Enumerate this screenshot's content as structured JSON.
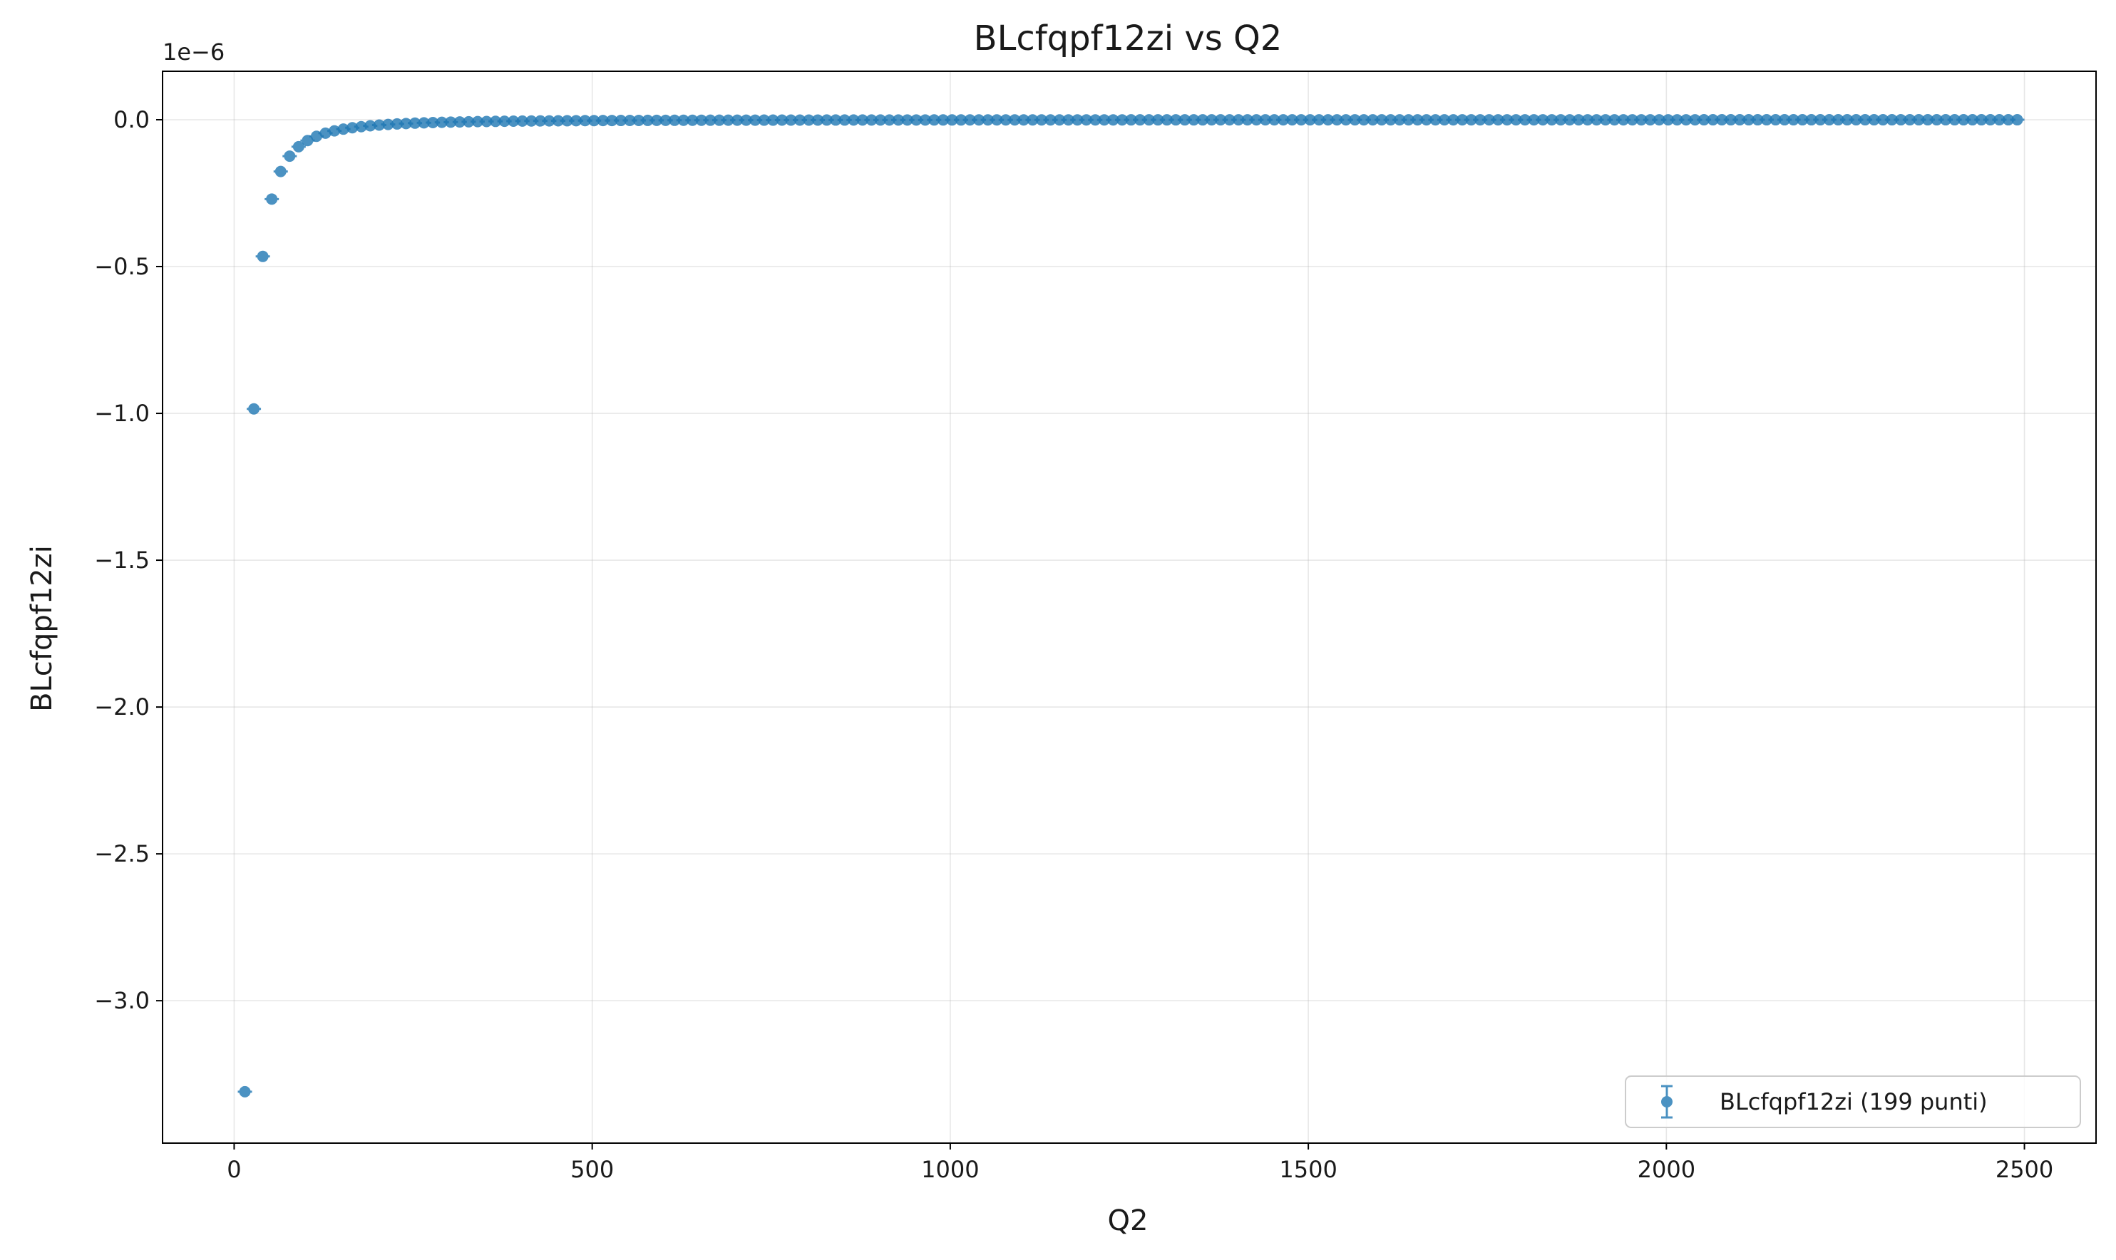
{
  "chart_data": {
    "type": "scatter",
    "title": "BLcfqpf12zi vs Q2",
    "xlabel": "Q2",
    "ylabel": "BLcfqpf12zi",
    "y_offset_text": "1e−6",
    "xlim": [
      -100,
      2600
    ],
    "ylim": [
      -3.485,
      0.165
    ],
    "xticks": [
      0,
      500,
      1000,
      1500,
      2000,
      2500
    ],
    "xtick_labels": [
      "0",
      "500",
      "1000",
      "1500",
      "2000",
      "2500"
    ],
    "yticks": [
      0.0,
      -0.5,
      -1.0,
      -1.5,
      -2.0,
      -2.5,
      -3.0
    ],
    "ytick_labels": [
      "0.0",
      "−0.5",
      "−1.0",
      "−1.5",
      "−2.0",
      "−2.5",
      "−3.0"
    ],
    "y_unit_scale": "1e-6",
    "grid": true,
    "legend_position": "lower-right",
    "legend_label": "BLcfqpf12zi (199 punti)",
    "marker_color": "#1f77b4",
    "error_bars": true,
    "series": [
      {
        "name": "BLcfqpf12zi (199 punti)",
        "point_count": 199,
        "x_start": 15,
        "x_step": 12.5,
        "model": "y = -3.31 * (15 / x)^2 (×1e-6)",
        "x": [
          15,
          27.5,
          40,
          52.5,
          65,
          77.5,
          90,
          102.5,
          115,
          127.5,
          140,
          152.5,
          165,
          177.5,
          190,
          202.5,
          215,
          227.5,
          240,
          252.5,
          265,
          277.5,
          290,
          302.5,
          315,
          327.5,
          340,
          352.5,
          365,
          377.5,
          390,
          402.5,
          415,
          427.5,
          440,
          452.5,
          465,
          477.5,
          490,
          502.5,
          515,
          527.5,
          540,
          552.5,
          565,
          577.5,
          590,
          602.5,
          615,
          627.5,
          640,
          652.5,
          665,
          677.5,
          690,
          702.5,
          715,
          727.5,
          740,
          752.5,
          765,
          777.5,
          790,
          802.5,
          815,
          827.5,
          840,
          852.5,
          865,
          877.5,
          890,
          902.5,
          915,
          927.5,
          940,
          952.5,
          965,
          977.5,
          990,
          1002.5,
          1015,
          1027.5,
          1040,
          1052.5,
          1065,
          1077.5,
          1090,
          1102.5,
          1115,
          1127.5,
          1140,
          1152.5,
          1165,
          1177.5,
          1190,
          1202.5,
          1215,
          1227.5,
          1240,
          1252.5,
          1265,
          1277.5,
          1290,
          1302.5,
          1315,
          1327.5,
          1340,
          1352.5,
          1365,
          1377.5,
          1390,
          1402.5,
          1415,
          1427.5,
          1440,
          1452.5,
          1465,
          1477.5,
          1490,
          1502.5,
          1515,
          1527.5,
          1540,
          1552.5,
          1565,
          1577.5,
          1590,
          1602.5,
          1615,
          1627.5,
          1640,
          1652.5,
          1665,
          1677.5,
          1690,
          1702.5,
          1715,
          1727.5,
          1740,
          1752.5,
          1765,
          1777.5,
          1790,
          1802.5,
          1815,
          1827.5,
          1840,
          1852.5,
          1865,
          1877.5,
          1890,
          1902.5,
          1915,
          1927.5,
          1940,
          1952.5,
          1965,
          1977.5,
          1990,
          2002.5,
          2015,
          2027.5,
          2040,
          2052.5,
          2065,
          2077.5,
          2090,
          2102.5,
          2115,
          2127.5,
          2140,
          2152.5,
          2165,
          2177.5,
          2190,
          2202.5,
          2215,
          2227.5,
          2240,
          2252.5,
          2265,
          2277.5,
          2290,
          2302.5,
          2315,
          2327.5,
          2340,
          2352.5,
          2365,
          2377.5,
          2390,
          2402.5,
          2415,
          2427.5,
          2440,
          2452.5,
          2465,
          2477.5,
          2490
        ]
      }
    ]
  }
}
